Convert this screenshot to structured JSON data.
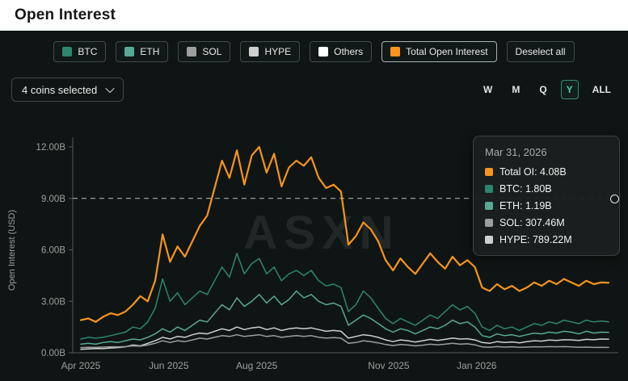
{
  "header": {
    "title": "Open Interest"
  },
  "legend": {
    "items": [
      {
        "label": "BTC",
        "color": "#2e8570"
      },
      {
        "label": "ETH",
        "color": "#58a894"
      },
      {
        "label": "SOL",
        "color": "#9b9f9d"
      },
      {
        "label": "HYPE",
        "color": "#cdd0cf"
      },
      {
        "label": "Others",
        "color": "#ffffff"
      },
      {
        "label": "Total Open Interest",
        "color": "#f7941d"
      }
    ],
    "deselect_label": "Deselect all"
  },
  "controls": {
    "coins_selected": "4 coins selected",
    "ranges": [
      "W",
      "M",
      "Q",
      "Y",
      "ALL"
    ],
    "active_range": "Y"
  },
  "tooltip": {
    "date": "Mar 31, 2026",
    "rows": [
      {
        "text": "Total OI: 4.08B",
        "color": "#f7941d"
      },
      {
        "text": "BTC: 1.80B",
        "color": "#2e8570"
      },
      {
        "text": "ETH: 1.19B",
        "color": "#58a894"
      },
      {
        "text": "SOL: 307.46M",
        "color": "#9b9f9d"
      },
      {
        "text": "HYPE: 789.22M",
        "color": "#cdd0cf"
      }
    ]
  },
  "chart_data": {
    "type": "line",
    "title": "Open Interest",
    "ylabel": "Open Interest (USD)",
    "watermark": "ASXN",
    "ylim": [
      0,
      12
    ],
    "grid": false,
    "legend_position": "top",
    "months_span": 12,
    "y_ticks": [
      {
        "label": "0.00B",
        "value": 0
      },
      {
        "label": "3.00B",
        "value": 3
      },
      {
        "label": "6.00B",
        "value": 6
      },
      {
        "label": "9.00B",
        "value": 9
      },
      {
        "label": "12.00B",
        "value": 12
      }
    ],
    "x_ticks": [
      {
        "label": "Apr 2025",
        "month": 0
      },
      {
        "label": "Jun 2025",
        "month": 2
      },
      {
        "label": "Aug 2025",
        "month": 4
      },
      {
        "label": "Nov 2025",
        "month": 7
      },
      {
        "label": "Jan 2026",
        "month": 9
      }
    ],
    "reference_line": {
      "value": 9,
      "style": "dashed"
    },
    "units": "B USD",
    "series": [
      {
        "name": "Total OI",
        "color": "#f7941d",
        "values": [
          1.9,
          2.0,
          1.8,
          2.1,
          2.3,
          2.2,
          2.4,
          2.8,
          3.3,
          3.0,
          4.2,
          6.9,
          5.3,
          6.2,
          5.6,
          6.5,
          7.4,
          8.0,
          9.6,
          11.2,
          10.2,
          11.8,
          9.8,
          11.5,
          12.0,
          10.5,
          11.6,
          9.7,
          10.8,
          11.2,
          10.9,
          11.4,
          10.2,
          9.6,
          9.8,
          9.4,
          6.3,
          6.8,
          7.6,
          7.2,
          6.5,
          5.4,
          4.8,
          5.5,
          5.0,
          4.6,
          5.2,
          5.8,
          5.3,
          4.9,
          5.6,
          5.1,
          5.4,
          5.0,
          3.8,
          3.6,
          4.0,
          3.7,
          3.9,
          3.6,
          3.8,
          4.1,
          3.9,
          4.2,
          4.0,
          4.3,
          4.1,
          3.9,
          4.2,
          4.0,
          4.1,
          4.08
        ]
      },
      {
        "name": "BTC",
        "color": "#2e8570",
        "values": [
          0.8,
          0.9,
          0.85,
          0.9,
          1.0,
          1.1,
          1.2,
          1.5,
          1.4,
          1.8,
          2.6,
          4.3,
          3.0,
          3.5,
          2.8,
          3.2,
          3.6,
          3.4,
          4.2,
          5.0,
          4.4,
          5.8,
          4.6,
          5.2,
          5.5,
          4.6,
          5.0,
          4.2,
          4.6,
          4.8,
          4.5,
          4.8,
          4.2,
          3.9,
          4.0,
          3.8,
          2.4,
          2.8,
          3.6,
          3.2,
          2.6,
          2.0,
          1.7,
          2.0,
          1.8,
          1.6,
          1.9,
          2.2,
          2.0,
          2.4,
          2.8,
          2.5,
          2.7,
          2.3,
          1.5,
          1.3,
          1.6,
          1.4,
          1.5,
          1.3,
          1.5,
          1.7,
          1.6,
          1.8,
          1.7,
          1.9,
          1.8,
          1.7,
          1.9,
          1.8,
          1.85,
          1.8
        ]
      },
      {
        "name": "ETH",
        "color": "#58a894",
        "values": [
          0.5,
          0.55,
          0.5,
          0.6,
          0.65,
          0.6,
          0.7,
          0.8,
          0.75,
          0.9,
          1.1,
          1.4,
          1.2,
          1.5,
          1.3,
          1.6,
          1.9,
          1.8,
          2.3,
          2.8,
          2.5,
          3.2,
          2.7,
          3.0,
          3.4,
          2.9,
          3.3,
          2.8,
          3.1,
          3.6,
          3.2,
          3.4,
          3.0,
          2.8,
          2.9,
          2.7,
          1.6,
          1.9,
          2.2,
          2.0,
          1.7,
          1.4,
          1.2,
          1.4,
          1.3,
          1.1,
          1.3,
          1.5,
          1.4,
          1.6,
          1.9,
          1.7,
          1.8,
          1.5,
          1.0,
          0.9,
          1.1,
          1.0,
          1.05,
          0.95,
          1.05,
          1.15,
          1.1,
          1.2,
          1.15,
          1.25,
          1.2,
          1.1,
          1.25,
          1.15,
          1.2,
          1.19
        ]
      },
      {
        "name": "SOL",
        "color": "#9b9f9d",
        "values": [
          0.3,
          0.32,
          0.31,
          0.33,
          0.35,
          0.34,
          0.36,
          0.4,
          0.38,
          0.45,
          0.55,
          0.7,
          0.6,
          0.7,
          0.65,
          0.75,
          0.85,
          0.8,
          0.9,
          1.0,
          0.95,
          1.05,
          0.95,
          1.0,
          1.05,
          0.95,
          1.0,
          0.9,
          0.95,
          1.0,
          0.95,
          1.0,
          0.9,
          0.85,
          0.88,
          0.85,
          0.55,
          0.6,
          0.7,
          0.65,
          0.58,
          0.48,
          0.42,
          0.48,
          0.45,
          0.4,
          0.44,
          0.5,
          0.46,
          0.5,
          0.55,
          0.5,
          0.52,
          0.46,
          0.34,
          0.32,
          0.36,
          0.33,
          0.35,
          0.32,
          0.33,
          0.35,
          0.34,
          0.36,
          0.35,
          0.36,
          0.34,
          0.32,
          0.33,
          0.31,
          0.32,
          0.31
        ]
      },
      {
        "name": "HYPE",
        "color": "#cdd0cf",
        "values": [
          0.2,
          0.22,
          0.25,
          0.24,
          0.28,
          0.3,
          0.35,
          0.45,
          0.4,
          0.55,
          0.7,
          0.9,
          0.8,
          0.95,
          0.9,
          1.05,
          1.15,
          1.1,
          1.25,
          1.4,
          1.3,
          1.5,
          1.35,
          1.45,
          1.5,
          1.35,
          1.45,
          1.3,
          1.4,
          1.45,
          1.4,
          1.45,
          1.35,
          1.25,
          1.3,
          1.25,
          0.85,
          0.95,
          1.05,
          1.0,
          0.9,
          0.75,
          0.65,
          0.75,
          0.7,
          0.62,
          0.7,
          0.78,
          0.72,
          0.78,
          0.85,
          0.8,
          0.82,
          0.75,
          0.6,
          0.55,
          0.65,
          0.6,
          0.63,
          0.58,
          0.65,
          0.7,
          0.68,
          0.74,
          0.72,
          0.76,
          0.75,
          0.72,
          0.78,
          0.76,
          0.8,
          0.79
        ]
      }
    ]
  }
}
